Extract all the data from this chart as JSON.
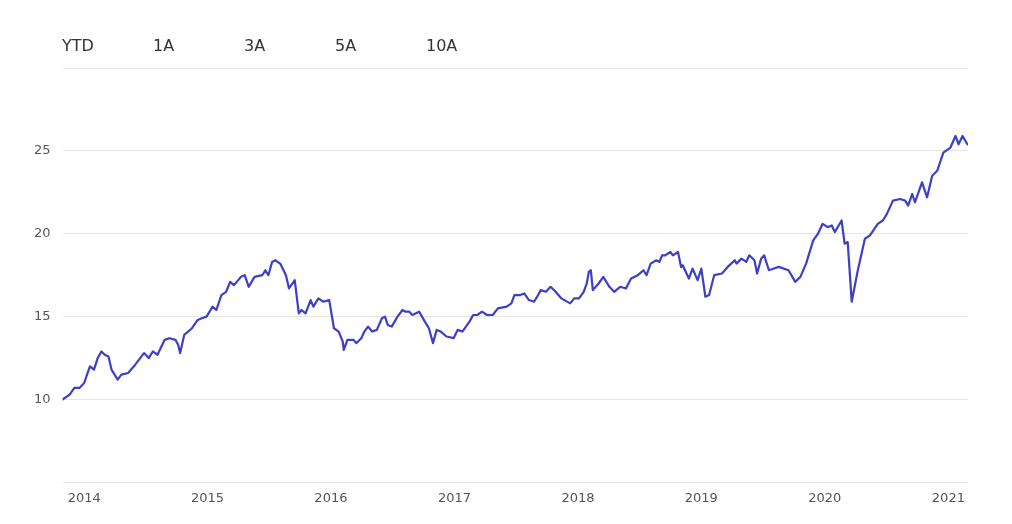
{
  "chart_data": {
    "type": "line",
    "annotations": [
      "YTD",
      "1A",
      "3A",
      "5A",
      "10A"
    ],
    "x": [
      "2013-10-29",
      "2013-11-19",
      "2013-12-03",
      "2013-12-18",
      "2014-01-01",
      "2014-01-18",
      "2014-01-30",
      "2014-02-10",
      "2014-02-21",
      "2014-03-03",
      "2014-03-14",
      "2014-03-23",
      "2014-04-01",
      "2014-04-10",
      "2014-04-21",
      "2014-05-11",
      "2014-06-01",
      "2014-06-27",
      "2014-07-11",
      "2014-07-23",
      "2014-08-06",
      "2014-08-27",
      "2014-09-10",
      "2014-09-28",
      "2014-10-06",
      "2014-10-12",
      "2014-10-24",
      "2014-11-16",
      "2014-12-03",
      "2014-12-15",
      "2014-12-29",
      "2015-01-16",
      "2015-01-27",
      "2015-02-11",
      "2015-02-25",
      "2015-03-09",
      "2015-03-20",
      "2015-04-10",
      "2015-04-21",
      "2015-05-03",
      "2015-05-20",
      "2015-06-12",
      "2015-06-21",
      "2015-06-30",
      "2015-07-11",
      "2015-07-20",
      "2015-08-04",
      "2015-08-21",
      "2015-08-30",
      "2015-09-16",
      "2015-09-28",
      "2015-10-06",
      "2015-10-18",
      "2015-11-02",
      "2015-11-10",
      "2015-11-25",
      "2015-12-09",
      "2015-12-27",
      "2016-01-10",
      "2016-01-24",
      "2016-02-05",
      "2016-02-08",
      "2016-02-19",
      "2016-03-08",
      "2016-03-16",
      "2016-03-31",
      "2016-04-09",
      "2016-04-20",
      "2016-05-02",
      "2016-05-16",
      "2016-05-31",
      "2016-06-09",
      "2016-06-17",
      "2016-06-29",
      "2016-07-16",
      "2016-07-31",
      "2016-08-08",
      "2016-08-20",
      "2016-08-29",
      "2016-09-18",
      "2016-10-05",
      "2016-10-17",
      "2016-10-29",
      "2016-11-09",
      "2016-11-21",
      "2016-12-08",
      "2016-12-29",
      "2017-01-10",
      "2017-01-24",
      "2017-02-14",
      "2017-02-25",
      "2017-03-09",
      "2017-03-23",
      "2017-04-07",
      "2017-04-24",
      "2017-05-09",
      "2017-06-04",
      "2017-06-18",
      "2017-06-27",
      "2017-07-14",
      "2017-07-26",
      "2017-08-09",
      "2017-08-24",
      "2017-09-05",
      "2017-09-13",
      "2017-09-28",
      "2017-10-12",
      "2017-10-27",
      "2017-11-13",
      "2017-12-09",
      "2017-12-21",
      "2018-01-04",
      "2018-01-18",
      "2018-01-27",
      "2018-02-02",
      "2018-02-08",
      "2018-02-14",
      "2018-03-03",
      "2018-03-17",
      "2018-04-04",
      "2018-04-18",
      "2018-05-06",
      "2018-05-23",
      "2018-06-07",
      "2018-06-27",
      "2018-07-14",
      "2018-07-23",
      "2018-08-04",
      "2018-08-21",
      "2018-08-30",
      "2018-09-07",
      "2018-09-16",
      "2018-10-01",
      "2018-10-09",
      "2018-10-24",
      "2018-11-02",
      "2018-11-07",
      "2018-11-25",
      "2018-12-06",
      "2018-12-21",
      "2019-01-01",
      "2019-01-13",
      "2019-01-24",
      "2019-02-08",
      "2019-03-03",
      "2019-03-20",
      "2019-04-10",
      "2019-04-15",
      "2019-04-30",
      "2019-05-14",
      "2019-05-23",
      "2019-06-07",
      "2019-06-15",
      "2019-06-27",
      "2019-07-06",
      "2019-07-20",
      "2019-08-04",
      "2019-08-18",
      "2019-09-16",
      "2019-10-06",
      "2019-10-21",
      "2019-11-07",
      "2019-11-28",
      "2019-12-12",
      "2019-12-26",
      "2020-01-10",
      "2020-01-22",
      "2020-01-31",
      "2020-02-20",
      "2020-02-29",
      "2020-03-09",
      "2020-03-21",
      "2020-04-08",
      "2020-04-29",
      "2020-05-14",
      "2020-06-06",
      "2020-06-21",
      "2020-07-03",
      "2020-07-21",
      "2020-08-11",
      "2020-08-26",
      "2020-09-04",
      "2020-09-16",
      "2020-09-24",
      "2020-10-15",
      "2020-10-30",
      "2020-11-14",
      "2020-11-29",
      "2020-12-17",
      "2021-01-07",
      "2021-01-22",
      "2021-01-31",
      "2021-02-12",
      "2021-02-26"
    ],
    "series": [
      {
        "color": "#3d3fc9",
        "values": [
          10.0,
          10.3,
          10.7,
          10.7,
          11.0,
          12.0,
          11.8,
          12.5,
          12.9,
          12.7,
          12.6,
          11.8,
          11.5,
          11.2,
          11.5,
          11.6,
          12.1,
          12.8,
          12.5,
          12.9,
          12.7,
          13.6,
          13.7,
          13.6,
          13.3,
          12.8,
          13.9,
          14.3,
          14.8,
          14.9,
          15.0,
          15.6,
          15.4,
          16.3,
          16.5,
          17.1,
          16.9,
          17.4,
          17.5,
          16.8,
          17.4,
          17.5,
          17.8,
          17.5,
          18.3,
          18.4,
          18.2,
          17.5,
          16.7,
          17.2,
          15.2,
          15.4,
          15.2,
          16.0,
          15.6,
          16.1,
          15.9,
          16.0,
          14.3,
          14.1,
          13.5,
          13.0,
          13.6,
          13.6,
          13.4,
          13.7,
          14.1,
          14.4,
          14.1,
          14.2,
          14.9,
          15.0,
          14.5,
          14.4,
          15.0,
          15.4,
          15.3,
          15.3,
          15.1,
          15.3,
          14.7,
          14.3,
          13.4,
          14.2,
          14.1,
          13.8,
          13.7,
          14.2,
          14.1,
          14.7,
          15.1,
          15.1,
          15.3,
          15.1,
          15.1,
          15.5,
          15.6,
          15.8,
          16.3,
          16.3,
          16.4,
          16.0,
          15.9,
          16.3,
          16.6,
          16.5,
          16.8,
          16.5,
          16.1,
          15.8,
          16.1,
          16.1,
          16.5,
          17.0,
          17.7,
          17.8,
          16.6,
          17.0,
          17.4,
          16.8,
          16.5,
          16.8,
          16.7,
          17.3,
          17.5,
          17.8,
          17.5,
          18.2,
          18.4,
          18.3,
          18.7,
          18.7,
          18.9,
          18.7,
          18.9,
          18.0,
          18.1,
          17.3,
          17.9,
          17.2,
          17.9,
          16.2,
          16.3,
          17.5,
          17.6,
          18.0,
          18.4,
          18.2,
          18.5,
          18.3,
          18.7,
          18.4,
          17.6,
          18.5,
          18.7,
          17.8,
          17.9,
          18.0,
          17.8,
          17.1,
          17.4,
          18.2,
          19.6,
          20.0,
          20.6,
          20.4,
          20.5,
          20.1,
          20.8,
          19.4,
          19.5,
          15.9,
          17.8,
          19.7,
          19.9,
          20.6,
          20.8,
          21.2,
          22.0,
          22.1,
          22.0,
          21.7,
          22.4,
          21.9,
          23.1,
          22.2,
          23.5,
          23.8,
          24.9,
          25.2,
          25.9,
          25.4,
          25.9,
          25.4
        ]
      }
    ],
    "xlim": [
      "2013-10-29",
      "2021-02-28"
    ],
    "xticks": [
      "2014",
      "2015",
      "2016",
      "2017",
      "2018",
      "2019",
      "2020",
      "2021"
    ],
    "ylim": [
      5,
      30
    ],
    "yticks": [
      {
        "value": 5,
        "label": null
      },
      10,
      15,
      20,
      25,
      {
        "value": 30,
        "label": null
      }
    ],
    "grid": "y",
    "legend": false,
    "marker": "none",
    "line_style": "solid"
  }
}
